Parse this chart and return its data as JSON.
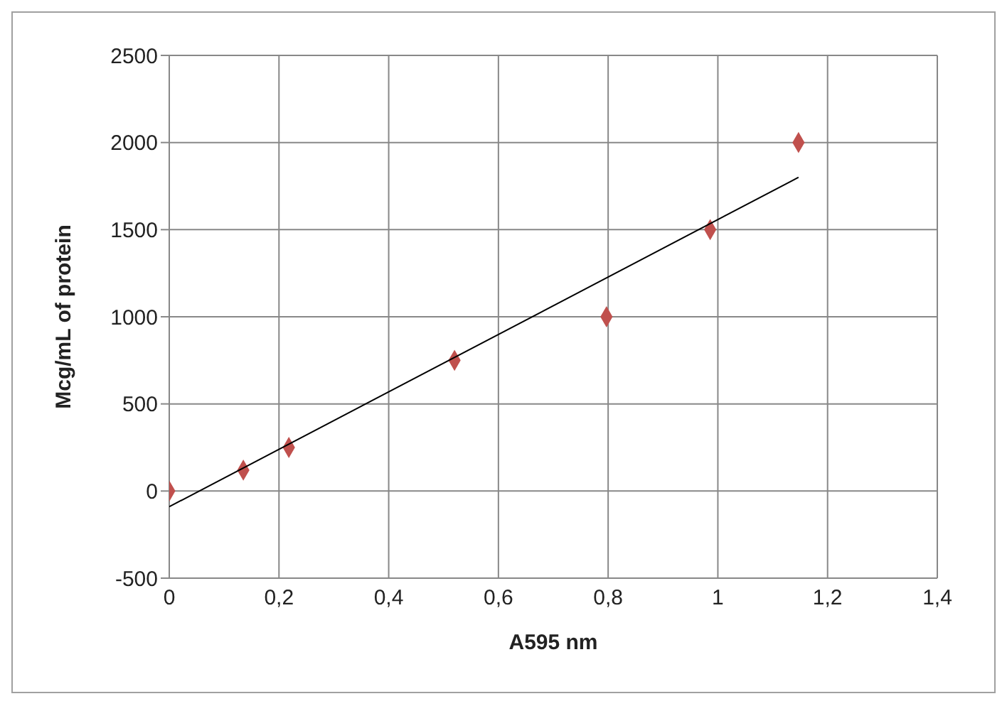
{
  "chart_data": {
    "type": "scatter",
    "xlabel": "A595 nm",
    "ylabel": "Mcg/mL of protein",
    "xlim": [
      0,
      1.4
    ],
    "ylim": [
      -500,
      2500
    ],
    "xticks": [
      0,
      {
        "value": 0.2,
        "label": "0,2"
      },
      {
        "value": 0.4,
        "label": "0,4"
      },
      {
        "value": 0.6,
        "label": "0,6"
      },
      {
        "value": 0.8,
        "label": "0,8"
      },
      1,
      {
        "value": 1.2,
        "label": "1,2"
      },
      {
        "value": 1.4,
        "label": "1,4"
      }
    ],
    "yticks": [
      -500,
      0,
      500,
      1000,
      1500,
      2000,
      2500
    ],
    "grid": true,
    "series": [
      {
        "color": "#c0504d",
        "marker": "diamond",
        "x": [
          0,
          0.135,
          0.218,
          0.52,
          0.797,
          0.986,
          1.147
        ],
        "values": [
          0,
          120,
          250,
          750,
          1000,
          1500,
          2000
        ]
      },
      {
        "type": "line",
        "color": "#000000",
        "marker": "none",
        "line_style": "solid",
        "x": [
          0,
          1.147
        ],
        "values": [
          -90,
          1800
        ]
      }
    ]
  }
}
